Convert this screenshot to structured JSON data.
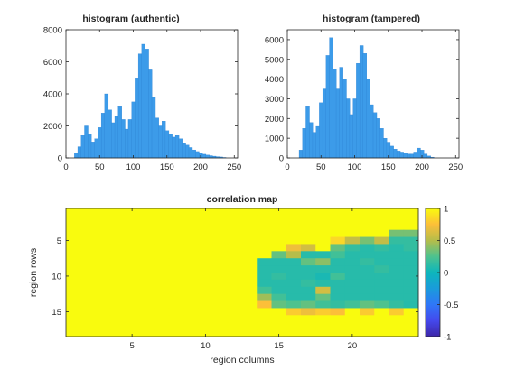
{
  "colors": {
    "bar": "#3c9be9",
    "bar_edge": "#2a7fd0",
    "axis": "#262626",
    "heat_high": "#f9fb0e",
    "heat_low": "#3e26a8"
  },
  "chart_data": [
    {
      "type": "bar",
      "title": "histogram (authentic)",
      "xlim": [
        0,
        255
      ],
      "ylim": [
        0,
        8000
      ],
      "xticks": [
        0,
        50,
        100,
        150,
        200,
        250
      ],
      "yticks": [
        0,
        2000,
        4000,
        6000,
        8000
      ],
      "x": [
        10,
        15,
        20,
        25,
        30,
        35,
        40,
        45,
        50,
        55,
        60,
        65,
        70,
        75,
        80,
        85,
        90,
        95,
        100,
        105,
        110,
        115,
        120,
        125,
        130,
        135,
        140,
        145,
        150,
        155,
        160,
        165,
        170,
        175,
        180,
        185,
        190,
        195,
        200,
        205,
        210,
        215,
        220,
        225,
        230,
        235,
        240
      ],
      "values": [
        0,
        300,
        700,
        1400,
        2000,
        1500,
        1000,
        1200,
        1900,
        2800,
        4000,
        3000,
        2200,
        2600,
        3200,
        2400,
        1800,
        2400,
        3500,
        5000,
        6500,
        7100,
        6800,
        5500,
        3800,
        2500,
        2000,
        2300,
        1700,
        1500,
        1300,
        1400,
        1200,
        900,
        800,
        650,
        500,
        400,
        300,
        230,
        180,
        140,
        110,
        80,
        60,
        30,
        0
      ]
    },
    {
      "type": "bar",
      "title": "histogram (tampered)",
      "xlim": [
        0,
        255
      ],
      "ylim": [
        0,
        6500
      ],
      "xticks": [
        0,
        50,
        100,
        150,
        200,
        250
      ],
      "yticks": [
        0,
        1000,
        2000,
        3000,
        4000,
        5000,
        6000
      ],
      "x": [
        15,
        20,
        25,
        30,
        35,
        40,
        45,
        50,
        55,
        60,
        65,
        70,
        75,
        80,
        85,
        90,
        95,
        100,
        105,
        110,
        115,
        120,
        125,
        130,
        135,
        140,
        145,
        150,
        155,
        160,
        165,
        170,
        175,
        180,
        185,
        190,
        195,
        200,
        205,
        210,
        215,
        220
      ],
      "values": [
        0,
        400,
        1500,
        2600,
        1800,
        1300,
        1600,
        2800,
        3500,
        5200,
        6100,
        4500,
        3500,
        4600,
        4000,
        3000,
        2200,
        3000,
        4800,
        5700,
        5300,
        4000,
        2700,
        2300,
        2000,
        1500,
        1000,
        800,
        600,
        450,
        350,
        300,
        250,
        200,
        200,
        300,
        500,
        400,
        200,
        100,
        40,
        0
      ]
    },
    {
      "type": "heatmap",
      "title": "correlation map",
      "xlabel": "region columns",
      "ylabel": "region rows",
      "xticks": [
        5,
        10,
        15,
        20
      ],
      "yticks": [
        5,
        10,
        15
      ],
      "colorbar_ticks": [
        1,
        0.5,
        0,
        -0.5,
        -1
      ],
      "clim": [
        -1,
        1
      ],
      "columns": 24,
      "rows": 18,
      "values": [
        [
          1,
          1,
          1,
          1,
          1,
          1,
          1,
          1,
          1,
          1,
          1,
          1,
          1,
          1,
          1,
          1,
          1,
          1,
          1,
          1,
          1,
          1,
          1,
          1
        ],
        [
          1,
          1,
          1,
          1,
          1,
          1,
          1,
          1,
          1,
          1,
          1,
          1,
          1,
          1,
          1,
          1,
          1,
          1,
          1,
          1,
          1,
          1,
          1,
          1
        ],
        [
          1,
          1,
          1,
          1,
          1,
          1,
          1,
          1,
          1,
          1,
          1,
          1,
          1,
          1,
          1,
          1,
          1,
          1,
          1,
          1,
          1,
          1,
          1,
          1
        ],
        [
          1,
          1,
          1,
          1,
          1,
          1,
          1,
          1,
          1,
          1,
          1,
          1,
          1,
          1,
          1,
          1,
          1,
          1,
          1,
          1,
          1,
          1,
          0.35,
          0.35
        ],
        [
          1,
          1,
          1,
          1,
          1,
          1,
          1,
          1,
          1,
          1,
          1,
          1,
          1,
          1,
          1,
          1,
          1,
          1,
          0.85,
          0.55,
          0.35,
          0.55,
          0.15,
          0.15
        ],
        [
          1,
          1,
          1,
          1,
          1,
          1,
          1,
          1,
          1,
          1,
          1,
          1,
          1,
          1,
          1,
          0.7,
          0.6,
          1,
          0.3,
          0.15,
          0.1,
          0.15,
          0.1,
          0.15
        ],
        [
          1,
          1,
          1,
          1,
          1,
          1,
          1,
          1,
          1,
          1,
          1,
          1,
          1,
          1,
          0.3,
          0.5,
          0.1,
          0.1,
          0.2,
          0.1,
          0.1,
          0.1,
          0.1,
          0.1
        ],
        [
          1,
          1,
          1,
          1,
          1,
          1,
          1,
          1,
          1,
          1,
          1,
          1,
          1,
          0.1,
          0.1,
          0.1,
          0.3,
          0.4,
          0.1,
          0.1,
          0.15,
          0.1,
          0.1,
          0.1
        ],
        [
          1,
          1,
          1,
          1,
          1,
          1,
          1,
          1,
          1,
          1,
          1,
          1,
          1,
          0.1,
          0.1,
          0.1,
          0.1,
          0.1,
          0.1,
          0.1,
          0.1,
          0.15,
          0.1,
          0.1
        ],
        [
          1,
          1,
          1,
          1,
          1,
          1,
          1,
          1,
          1,
          1,
          1,
          1,
          1,
          0.1,
          0.15,
          0.1,
          0.1,
          0.05,
          0.2,
          0.1,
          0.1,
          0.1,
          0.1,
          0.1
        ],
        [
          1,
          1,
          1,
          1,
          1,
          1,
          1,
          1,
          1,
          1,
          1,
          1,
          1,
          0.1,
          0.1,
          0.1,
          0.15,
          0.1,
          0.1,
          0.1,
          0.1,
          0.1,
          0.1,
          0.1
        ],
        [
          1,
          1,
          1,
          1,
          1,
          1,
          1,
          1,
          1,
          1,
          1,
          1,
          1,
          0.2,
          0.1,
          0.1,
          0.1,
          0.6,
          0.1,
          0.1,
          0.1,
          0.1,
          0.1,
          0.1
        ],
        [
          1,
          1,
          1,
          1,
          1,
          1,
          1,
          1,
          1,
          1,
          1,
          1,
          1,
          0.45,
          0.2,
          0.1,
          0.1,
          0.3,
          0.1,
          0.1,
          0.1,
          0.1,
          0.1,
          0.1
        ],
        [
          1,
          1,
          1,
          1,
          1,
          1,
          1,
          1,
          1,
          1,
          1,
          1,
          1,
          0.75,
          0.3,
          0.25,
          0.3,
          0.2,
          0.15,
          0.2,
          0.3,
          0.25,
          0.15,
          0.1
        ],
        [
          1,
          1,
          1,
          1,
          1,
          1,
          1,
          1,
          1,
          1,
          1,
          1,
          1,
          1,
          1,
          0.8,
          0.7,
          0.8,
          0.75,
          1,
          0.8,
          1,
          0.8,
          1
        ],
        [
          1,
          1,
          1,
          1,
          1,
          1,
          1,
          1,
          1,
          1,
          1,
          1,
          1,
          1,
          1,
          1,
          1,
          1,
          1,
          1,
          1,
          1,
          1,
          1
        ],
        [
          1,
          1,
          1,
          1,
          1,
          1,
          1,
          1,
          1,
          1,
          1,
          1,
          1,
          1,
          1,
          1,
          1,
          1,
          1,
          1,
          1,
          1,
          1,
          1
        ],
        [
          1,
          1,
          1,
          1,
          1,
          1,
          1,
          1,
          1,
          1,
          1,
          1,
          1,
          1,
          1,
          1,
          1,
          1,
          1,
          1,
          1,
          1,
          1,
          1
        ]
      ]
    }
  ]
}
